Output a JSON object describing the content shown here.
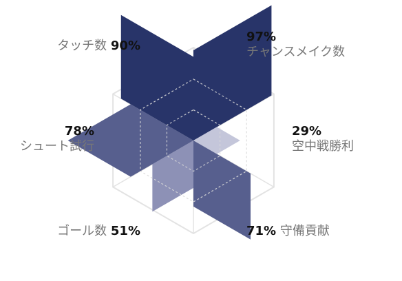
{
  "chart_data": {
    "type": "radar",
    "max": 100,
    "unit": "%",
    "grid_levels": [
      33,
      66,
      100
    ],
    "colors": {
      "shade_dark": "#283469",
      "shade_mid": "#575f8e",
      "shade_light": "#8d91b6",
      "shade_pale": "#c4c6da",
      "grid": "#e3e3e3",
      "grid_dashed": "#ffffff"
    },
    "axes": [
      {
        "label": "チャンスメイク数",
        "value": 97,
        "display": "97%"
      },
      {
        "label": "空中戦勝利",
        "value": 29,
        "display": "29%"
      },
      {
        "label": "守備貢献",
        "value": 71,
        "display": "71%"
      },
      {
        "label": "ゴール数",
        "value": 51,
        "display": "51%"
      },
      {
        "label": "シュート試行",
        "value": 78,
        "display": "78%"
      },
      {
        "label": "タッチ数",
        "value": 90,
        "display": "90%"
      }
    ]
  }
}
